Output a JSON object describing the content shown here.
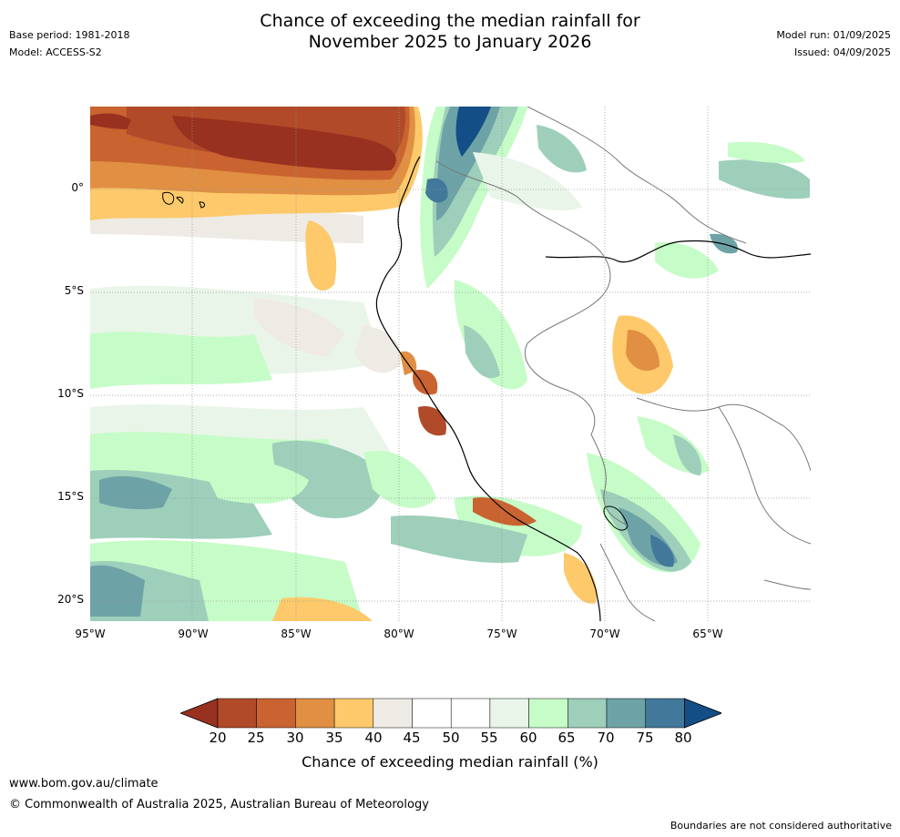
{
  "header": {
    "title_line1": "Chance of exceeding the median rainfall for",
    "title_line2": "November 2025 to January 2026",
    "base_period": "Base period: 1981-2018",
    "model": "Model: ACCESS-S2",
    "model_run": "Model run: 01/09/2025",
    "issued": "Issued: 04/09/2025"
  },
  "map": {
    "lat_labels": [
      "0°",
      "5°S",
      "10°S",
      "15°S",
      "20°S"
    ],
    "lon_labels": [
      "95°W",
      "90°W",
      "85°W",
      "80°W",
      "75°W",
      "70°W",
      "65°W"
    ],
    "region": "western South America",
    "gridlines": true
  },
  "legend": {
    "label": "Chance of exceeding median rainfall (%)",
    "ticks": [
      "20",
      "25",
      "30",
      "35",
      "40",
      "45",
      "50",
      "55",
      "60",
      "65",
      "70",
      "75",
      "80"
    ],
    "colors": [
      "#98311f",
      "#b04a28",
      "#c9632f",
      "#e08f43",
      "#fdc96a",
      "#eeeae4",
      "#ffffff",
      "#ffffff",
      "#e9f5e9",
      "#c6fcc7",
      "#9dcfba",
      "#6da3a7",
      "#42789a",
      "#134e86"
    ]
  },
  "footer": {
    "url": "www.bom.gov.au/climate",
    "copyright": "© Commonwealth of Australia 2025, Australian Bureau of Meteorology",
    "note": "Boundaries are not considered authoritative"
  }
}
